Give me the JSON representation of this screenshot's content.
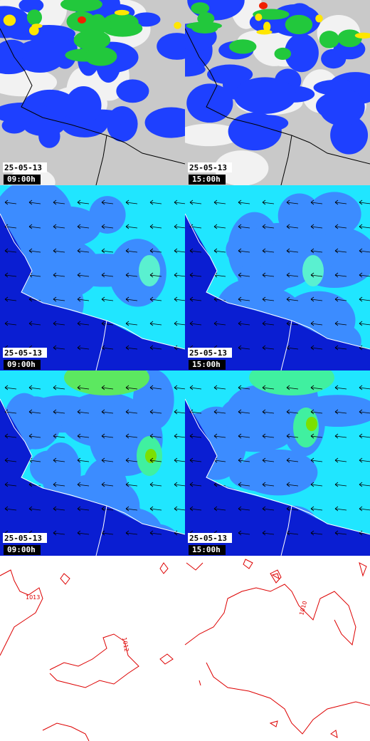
{
  "panels": [
    {
      "date": "25-05-13",
      "time": "09:00h"
    },
    {
      "date": "25-05-13",
      "time": "15:00h"
    },
    {
      "date": "25-05-13",
      "time": "09:00h"
    },
    {
      "date": "25-05-13",
      "time": "15:00h"
    },
    {
      "date": "25-05-13",
      "time": "09:00h"
    },
    {
      "date": "25-05-13",
      "time": "15:00h"
    }
  ],
  "contour_labels": [
    "1013",
    "1012",
    "1010"
  ]
}
